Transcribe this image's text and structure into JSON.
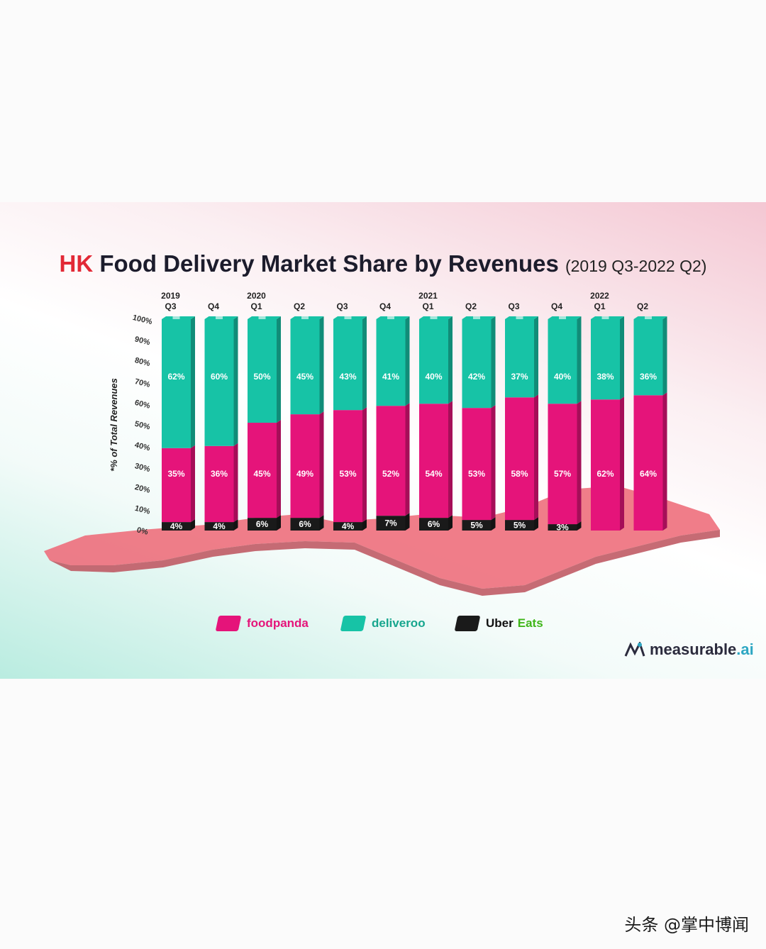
{
  "title": {
    "prefix": "HK",
    "main": "Food Delivery Market Share by Revenues",
    "range": "(2019 Q3-2022 Q2)"
  },
  "colors": {
    "foodpanda": "#e5147a",
    "deliveroo": "#17c3a6",
    "uber": "#1a1a1a",
    "map": "#ee6b79"
  },
  "chart_data": {
    "type": "bar",
    "stacked": true,
    "title": "HK Food Delivery Market Share by Revenues (2019 Q3-2022 Q2)",
    "ylabel": "*% of Total Revenues",
    "ylim": [
      0,
      100
    ],
    "yticks": [
      "0%",
      "10%",
      "20%",
      "30%",
      "40%",
      "50%",
      "60%",
      "70%",
      "80%",
      "90%",
      "100%"
    ],
    "categories": [
      {
        "year": "2019",
        "q": "Q3"
      },
      {
        "year": "",
        "q": "Q4"
      },
      {
        "year": "2020",
        "q": "Q1"
      },
      {
        "year": "",
        "q": "Q2"
      },
      {
        "year": "",
        "q": "Q3"
      },
      {
        "year": "",
        "q": "Q4"
      },
      {
        "year": "2021",
        "q": "Q1"
      },
      {
        "year": "",
        "q": "Q2"
      },
      {
        "year": "",
        "q": "Q3"
      },
      {
        "year": "",
        "q": "Q4"
      },
      {
        "year": "2022",
        "q": "Q1"
      },
      {
        "year": "",
        "q": "Q2"
      }
    ],
    "series": [
      {
        "name": "Uber Eats",
        "key": "uber",
        "values": [
          4,
          4,
          6,
          6,
          4,
          7,
          6,
          5,
          5,
          3,
          0,
          0
        ]
      },
      {
        "name": "foodpanda",
        "key": "foodpanda",
        "values": [
          35,
          36,
          45,
          49,
          53,
          52,
          54,
          53,
          58,
          57,
          62,
          64
        ]
      },
      {
        "name": "deliveroo",
        "key": "deliveroo",
        "values": [
          62,
          60,
          50,
          45,
          43,
          41,
          40,
          42,
          37,
          40,
          38,
          36
        ]
      }
    ]
  },
  "legend": [
    {
      "label": "foodpanda",
      "color": "#e5147a"
    },
    {
      "label": "deliveroo",
      "color": "#17c3a6"
    },
    {
      "label_a": "Uber",
      "label_b": "Eats",
      "color": "#1a1a1a"
    }
  ],
  "watermark": "measurable.ai",
  "logo": {
    "name": "measurable",
    "tld": ".ai"
  },
  "footer": "头条 @掌中博闻"
}
